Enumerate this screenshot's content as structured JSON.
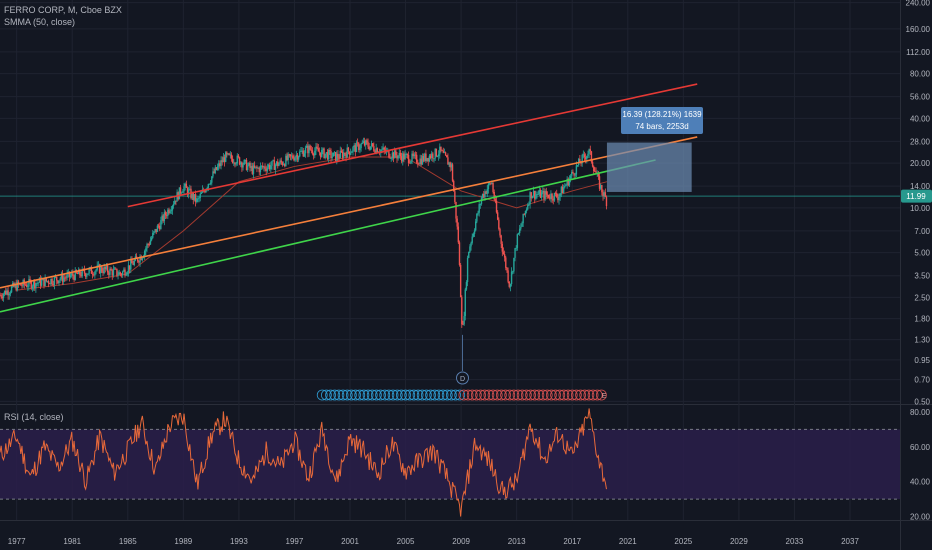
{
  "header": {
    "symbol_line": "FERRO CORP, M, Cboe BZX",
    "indicator_line": "SMMA (50, close)"
  },
  "rsi_panel": {
    "label": "RSI (14, close)"
  },
  "price_tag": "11.99",
  "measure_box": {
    "line1": "16.39 (128.21%) 1639",
    "line2": "74 bars, 2253d"
  },
  "event_markers": {
    "dividend_letter": "D",
    "earnings_letter": "E"
  },
  "colors": {
    "background": "#131722",
    "candle_up": "#26a69a",
    "candle_down": "#ef5350",
    "smma": "#a33a2f",
    "upper_trend": "#e53935",
    "mid_trend": "#f57f3b",
    "lower_trend": "#3fd44a",
    "rsi_line": "#e8693a",
    "rsi_band": "#2a1f4a",
    "measure_box": "#6d8fb5"
  },
  "chart_data": [
    {
      "type": "candlestick",
      "title": "FERRO CORP, M, Cboe BZX",
      "x_ticks": [
        "1977",
        "1981",
        "1985",
        "1989",
        "1993",
        "1997",
        "2001",
        "2005",
        "2009",
        "2013",
        "2017",
        "2021",
        "2025",
        "2029",
        "2033",
        "2037"
      ],
      "y_scale": "log",
      "y_ticks": [
        "240.00",
        "160.00",
        "112.00",
        "80.00",
        "56.00",
        "40.00",
        "28.00",
        "20.00",
        "14.00",
        "10.00",
        "7.00",
        "5.00",
        "3.50",
        "2.50",
        "1.80",
        "1.30",
        "0.95",
        "0.70",
        "0.50"
      ],
      "ylim": [
        0.48,
        250
      ],
      "xlim": [
        1975.8,
        2040.6
      ],
      "price_series": [
        {
          "year": 1975.8,
          "price": 2.6
        },
        {
          "year": 1977,
          "price": 3.0
        },
        {
          "year": 1979,
          "price": 3.2
        },
        {
          "year": 1981,
          "price": 3.5
        },
        {
          "year": 1983,
          "price": 3.9
        },
        {
          "year": 1984.5,
          "price": 3.6
        },
        {
          "year": 1986,
          "price": 4.8
        },
        {
          "year": 1987,
          "price": 7.0
        },
        {
          "year": 1988,
          "price": 10.0
        },
        {
          "year": 1989,
          "price": 14.0
        },
        {
          "year": 1990,
          "price": 11.0
        },
        {
          "year": 1991,
          "price": 16.0
        },
        {
          "year": 1992,
          "price": 22.0
        },
        {
          "year": 1993,
          "price": 21.0
        },
        {
          "year": 1994,
          "price": 18.0
        },
        {
          "year": 1996,
          "price": 20.0
        },
        {
          "year": 1998,
          "price": 25.0
        },
        {
          "year": 2000,
          "price": 22.0
        },
        {
          "year": 2002,
          "price": 27.0
        },
        {
          "year": 2004,
          "price": 23.0
        },
        {
          "year": 2006,
          "price": 21.0
        },
        {
          "year": 2007.5,
          "price": 24.0
        },
        {
          "year": 2008.3,
          "price": 19.0
        },
        {
          "year": 2008.8,
          "price": 6.0
        },
        {
          "year": 2009.1,
          "price": 1.4
        },
        {
          "year": 2009.5,
          "price": 5.0
        },
        {
          "year": 2010.5,
          "price": 12.0
        },
        {
          "year": 2011.2,
          "price": 15.0
        },
        {
          "year": 2011.8,
          "price": 6.5
        },
        {
          "year": 2012.5,
          "price": 3.0
        },
        {
          "year": 2013,
          "price": 6.0
        },
        {
          "year": 2014,
          "price": 12.5
        },
        {
          "year": 2016,
          "price": 12.0
        },
        {
          "year": 2017.5,
          "price": 20.0
        },
        {
          "year": 2018.2,
          "price": 24.0
        },
        {
          "year": 2019.0,
          "price": 14.0
        },
        {
          "year": 2019.5,
          "price": 11.0
        }
      ],
      "smma_series": [
        {
          "year": 1977,
          "price": 2.8
        },
        {
          "year": 1981,
          "price": 3.1
        },
        {
          "year": 1985,
          "price": 3.6
        },
        {
          "year": 1989,
          "price": 7.0
        },
        {
          "year": 1993,
          "price": 15.0
        },
        {
          "year": 1997,
          "price": 19.0
        },
        {
          "year": 2001,
          "price": 22.0
        },
        {
          "year": 2005,
          "price": 22.0
        },
        {
          "year": 2009,
          "price": 13.0
        },
        {
          "year": 2013,
          "price": 10.0
        },
        {
          "year": 2017,
          "price": 13.0
        },
        {
          "year": 2019.5,
          "price": 15.0
        }
      ],
      "trend_lines": [
        {
          "from": [
            1985,
            10.2
          ],
          "to": [
            2026,
            68.0
          ]
        },
        {
          "from": [
            1975.8,
            2.9
          ],
          "to": [
            2026,
            30.0
          ]
        },
        {
          "from": [
            1975.8,
            2.0
          ],
          "to": [
            2023,
            21.0
          ]
        }
      ],
      "horizontal_line": 11.99,
      "last_price": "11.99"
    },
    {
      "type": "line",
      "title": "RSI (14, close)",
      "y_ticks": [
        "80.00",
        "60.00",
        "40.00",
        "20.00"
      ],
      "ylim": [
        18,
        84
      ],
      "band": [
        30,
        70
      ],
      "rsi_series": [
        {
          "year": 1975.8,
          "rsi": 55
        },
        {
          "year": 1977,
          "rsi": 66
        },
        {
          "year": 1978,
          "rsi": 42
        },
        {
          "year": 1979,
          "rsi": 60
        },
        {
          "year": 1980,
          "rsi": 48
        },
        {
          "year": 1981,
          "rsi": 64
        },
        {
          "year": 1982,
          "rsi": 40
        },
        {
          "year": 1983,
          "rsi": 66
        },
        {
          "year": 1984,
          "rsi": 45
        },
        {
          "year": 1985,
          "rsi": 58
        },
        {
          "year": 1986,
          "rsi": 74
        },
        {
          "year": 1987,
          "rsi": 46
        },
        {
          "year": 1988,
          "rsi": 72
        },
        {
          "year": 1989,
          "rsi": 78
        },
        {
          "year": 1990,
          "rsi": 38
        },
        {
          "year": 1991,
          "rsi": 66
        },
        {
          "year": 1992,
          "rsi": 76
        },
        {
          "year": 1993,
          "rsi": 52
        },
        {
          "year": 1994,
          "rsi": 40
        },
        {
          "year": 1995,
          "rsi": 58
        },
        {
          "year": 1996,
          "rsi": 48
        },
        {
          "year": 1997,
          "rsi": 64
        },
        {
          "year": 1998,
          "rsi": 42
        },
        {
          "year": 1999,
          "rsi": 70
        },
        {
          "year": 2000,
          "rsi": 40
        },
        {
          "year": 2001,
          "rsi": 65
        },
        {
          "year": 2002,
          "rsi": 58
        },
        {
          "year": 2003,
          "rsi": 44
        },
        {
          "year": 2004,
          "rsi": 62
        },
        {
          "year": 2005,
          "rsi": 46
        },
        {
          "year": 2006,
          "rsi": 52
        },
        {
          "year": 2007,
          "rsi": 58
        },
        {
          "year": 2008,
          "rsi": 42
        },
        {
          "year": 2009,
          "rsi": 23
        },
        {
          "year": 2010,
          "rsi": 62
        },
        {
          "year": 2011,
          "rsi": 52
        },
        {
          "year": 2012,
          "rsi": 34
        },
        {
          "year": 2013,
          "rsi": 40
        },
        {
          "year": 2014,
          "rsi": 73
        },
        {
          "year": 2015,
          "rsi": 52
        },
        {
          "year": 2016,
          "rsi": 68
        },
        {
          "year": 2017,
          "rsi": 54
        },
        {
          "year": 2018.2,
          "rsi": 79
        },
        {
          "year": 2019.0,
          "rsi": 50
        },
        {
          "year": 2019.5,
          "rsi": 38
        }
      ]
    }
  ]
}
